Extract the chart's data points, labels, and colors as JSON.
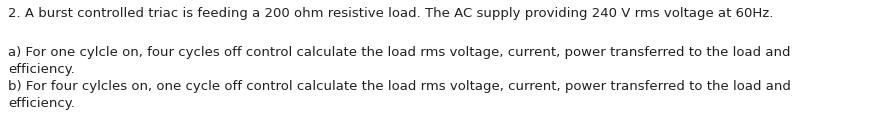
{
  "line1": "2. A burst controlled triac is feeding a 200 ohm resistive load. The AC supply providing 240 V rms voltage at 60Hz.",
  "line2": "a) For one cylcle on, four cycles off control calculate the load rms voltage, current, power transferred to the load and",
  "line3": "efficiency.",
  "line4": "b) For four cylcles on, one cycle off control calculate the load rms voltage, current, power transferred to the load and",
  "line5": "efficiency.",
  "font_size": 9.5,
  "background_color": "#ffffff",
  "text_color": "#231f20",
  "fig_width": 8.79,
  "fig_height": 1.33,
  "dpi": 100
}
